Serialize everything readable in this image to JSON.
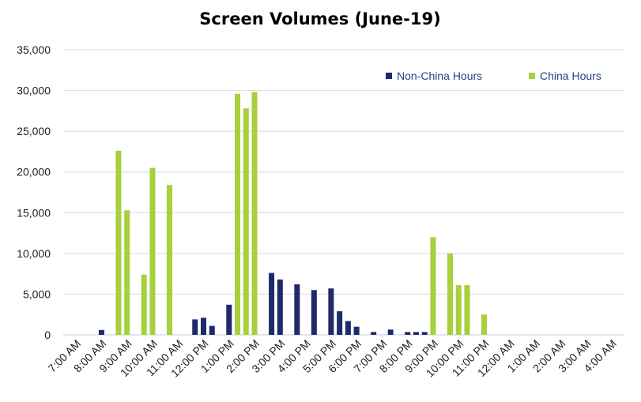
{
  "chart_data": {
    "type": "bar",
    "title": "Screen Volumes (June-19)",
    "xlabel": "",
    "ylabel": "",
    "ylim": [
      0,
      35000
    ],
    "yticks": [
      "0",
      "5,000",
      "10,000",
      "15,000",
      "20,000",
      "25,000",
      "30,000",
      "35,000"
    ],
    "grid": true,
    "legend_position": "top-right",
    "categories": [
      "7:00 AM",
      "8:00 AM",
      "9:00 AM",
      "10:00 AM",
      "11:00 AM",
      "12:00 PM",
      "1:00 PM",
      "2:00 PM",
      "3:00 PM",
      "4:00 PM",
      "5:00 PM",
      "6:00 PM",
      "7:00 PM",
      "8:00 PM",
      "9:00 PM",
      "10:00 PM",
      "11:00 PM",
      "12:00 AM",
      "1:00 AM",
      "2:00 AM",
      "3:00 AM",
      "4:00 AM"
    ],
    "bars_per_category": 2,
    "series": [
      {
        "name": "Non-China Hours",
        "color": "#1f2a6b",
        "x": [
          "8:00 AM",
          "12:00 PM",
          "12:00 PM",
          "12:00 PM",
          "1:00 PM",
          "3:00 PM",
          "3:00 PM",
          "4:00 PM",
          "4:00 PM",
          "5:00 PM",
          "5:00 PM",
          "6:00 PM",
          "6:00 PM",
          "7:00 PM",
          "7:00 PM",
          "8:00 PM",
          "8:00 PM",
          "9:00 PM"
        ],
        "x_half_offset": [
          0,
          -1,
          0,
          1,
          0,
          -1,
          0,
          1,
          -1,
          0,
          1,
          -1,
          0,
          1,
          -1,
          0,
          1,
          -1
        ],
        "values": [
          600,
          1900,
          2100,
          1100,
          3700,
          7600,
          6800,
          5500,
          6200,
          5700,
          2900,
          1700,
          1000,
          650,
          350,
          350,
          350,
          350
        ]
      },
      {
        "name": "China Hours",
        "color": "#a6d03c",
        "x": [
          "9:00 AM",
          "9:00 AM",
          "10:00 AM",
          "10:00 AM",
          "11:00 AM",
          "1:00 PM",
          "2:00 PM",
          "2:00 PM",
          "9:00 PM",
          "10:00 PM",
          "10:00 PM",
          "10:00 PM",
          "11:00 PM"
        ],
        "x_half_offset": [
          -1,
          0,
          -1,
          0,
          -1,
          1,
          -1,
          0,
          0,
          -1,
          0,
          1,
          0
        ],
        "values": [
          22600,
          15300,
          7400,
          20500,
          18400,
          29600,
          27800,
          29800,
          12000,
          10000,
          6100,
          6100,
          2500
        ]
      }
    ]
  }
}
